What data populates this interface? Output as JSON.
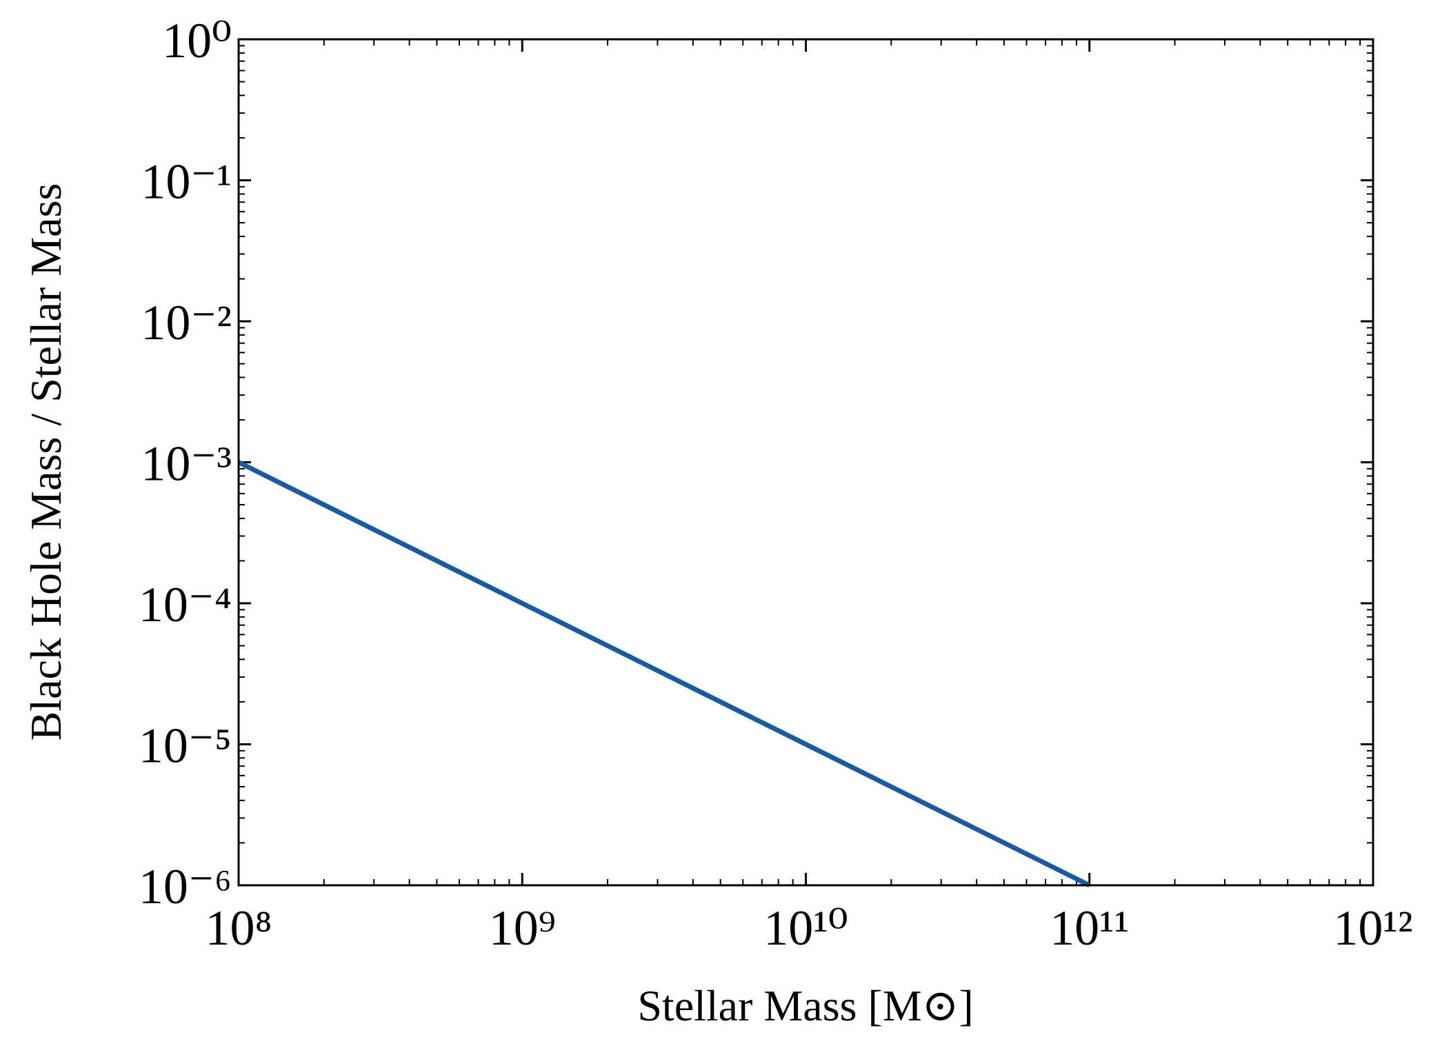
{
  "chart_data": {
    "type": "line",
    "xlabel": "Stellar Mass [M⊙]",
    "ylabel": "Black Hole Mass / Stellar Mass",
    "x": [
      100000000,
      100000000000
    ],
    "values": [
      0.001,
      1e-06
    ],
    "color": "#1a5a9e",
    "xscale": "log",
    "yscale": "log",
    "xlim": [
      100000000,
      1000000000000
    ],
    "ylim": [
      1e-06,
      1
    ],
    "xticks": [
      {
        "value": 100000000,
        "label": "10⁸"
      },
      {
        "value": 1000000000,
        "label": "10⁹"
      },
      {
        "value": 10000000000,
        "label": "10¹⁰"
      },
      {
        "value": 100000000000,
        "label": "10¹¹"
      },
      {
        "value": 1000000000000,
        "label": "10¹²"
      }
    ],
    "yticks": [
      {
        "value": 1e-06,
        "label": "10⁻⁶"
      },
      {
        "value": 1e-05,
        "label": "10⁻⁵"
      },
      {
        "value": 0.0001,
        "label": "10⁻⁴"
      },
      {
        "value": 0.001,
        "label": "10⁻³"
      },
      {
        "value": 0.01,
        "label": "10⁻²"
      },
      {
        "value": 0.1,
        "label": "10⁻¹"
      },
      {
        "value": 1,
        "label": "10⁰"
      }
    ]
  }
}
